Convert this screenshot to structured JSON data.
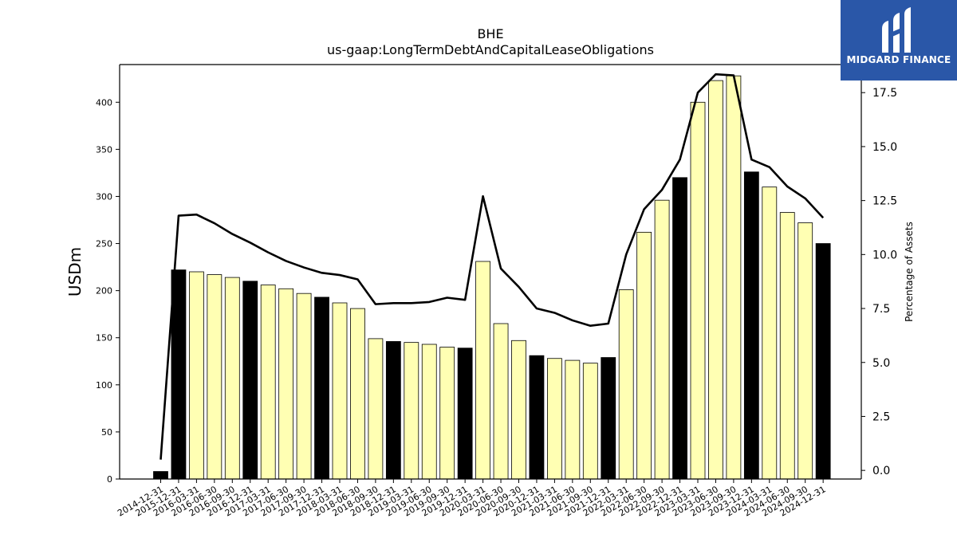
{
  "brand": {
    "name": "MIDGARD FINANCE",
    "icon": "midgard-logo-icon",
    "bg_color": "#2a57a8"
  },
  "chart_data": {
    "type": "bar",
    "title": "BHE",
    "subtitle": "us-gaap:LongTermDebtAndCapitalLeaseObligations",
    "ylabel": "USDm",
    "y2label": "Percentage of Assets",
    "ylim": [
      0,
      440
    ],
    "y2lim": [
      -0.4,
      18.8
    ],
    "yticks": [
      0,
      50,
      100,
      150,
      200,
      250,
      300,
      350,
      400
    ],
    "y2ticks": [
      0.0,
      2.5,
      5.0,
      7.5,
      10.0,
      12.5,
      15.0,
      17.5
    ],
    "categories": [
      "2014-12-31",
      "2015-12-31",
      "2016-03-31",
      "2016-06-30",
      "2016-09-30",
      "2016-12-31",
      "2017-03-31",
      "2017-06-30",
      "2017-09-30",
      "2017-12-31",
      "2018-03-31",
      "2018-06-30",
      "2018-09-30",
      "2018-12-31",
      "2019-03-31",
      "2019-06-30",
      "2019-09-30",
      "2019-12-31",
      "2020-03-31",
      "2020-06-30",
      "2020-09-30",
      "2020-12-31",
      "2021-03-31",
      "2021-06-30",
      "2021-09-30",
      "2021-12-31",
      "2022-03-31",
      "2022-06-30",
      "2022-09-30",
      "2022-12-31",
      "2023-03-31",
      "2023-06-30",
      "2023-09-30",
      "2023-12-31",
      "2024-03-31",
      "2024-06-30",
      "2024-09-30",
      "2024-12-31"
    ],
    "series": [
      {
        "kind": "bar",
        "values": [
          8,
          222,
          220,
          217,
          214,
          210,
          206,
          202,
          197,
          193,
          187,
          181,
          149,
          146,
          145,
          143,
          140,
          139,
          231,
          165,
          147,
          131,
          128,
          126,
          123,
          129,
          201,
          262,
          296,
          320,
          400,
          423,
          428,
          326,
          310,
          283,
          272,
          250
        ],
        "annual": [
          true,
          true,
          false,
          false,
          false,
          true,
          false,
          false,
          false,
          true,
          false,
          false,
          false,
          true,
          false,
          false,
          false,
          true,
          false,
          false,
          false,
          true,
          false,
          false,
          false,
          true,
          false,
          false,
          false,
          true,
          false,
          false,
          false,
          true,
          false,
          false,
          false,
          true
        ],
        "annual_color": "#000000",
        "quarter_color": "#ffffb3"
      },
      {
        "kind": "line",
        "axis": "right",
        "color": "#000000",
        "values": [
          0.5,
          11.8,
          11.85,
          11.45,
          10.95,
          10.55,
          10.1,
          9.7,
          9.4,
          9.15,
          9.05,
          8.85,
          7.7,
          7.75,
          7.75,
          7.8,
          8.0,
          7.9,
          12.7,
          9.35,
          8.5,
          7.5,
          7.3,
          6.95,
          6.7,
          6.8,
          10.0,
          12.1,
          13.0,
          14.4,
          17.5,
          18.35,
          18.3,
          14.4,
          14.05,
          13.15,
          12.6,
          11.7
        ]
      }
    ],
    "grid": false
  }
}
